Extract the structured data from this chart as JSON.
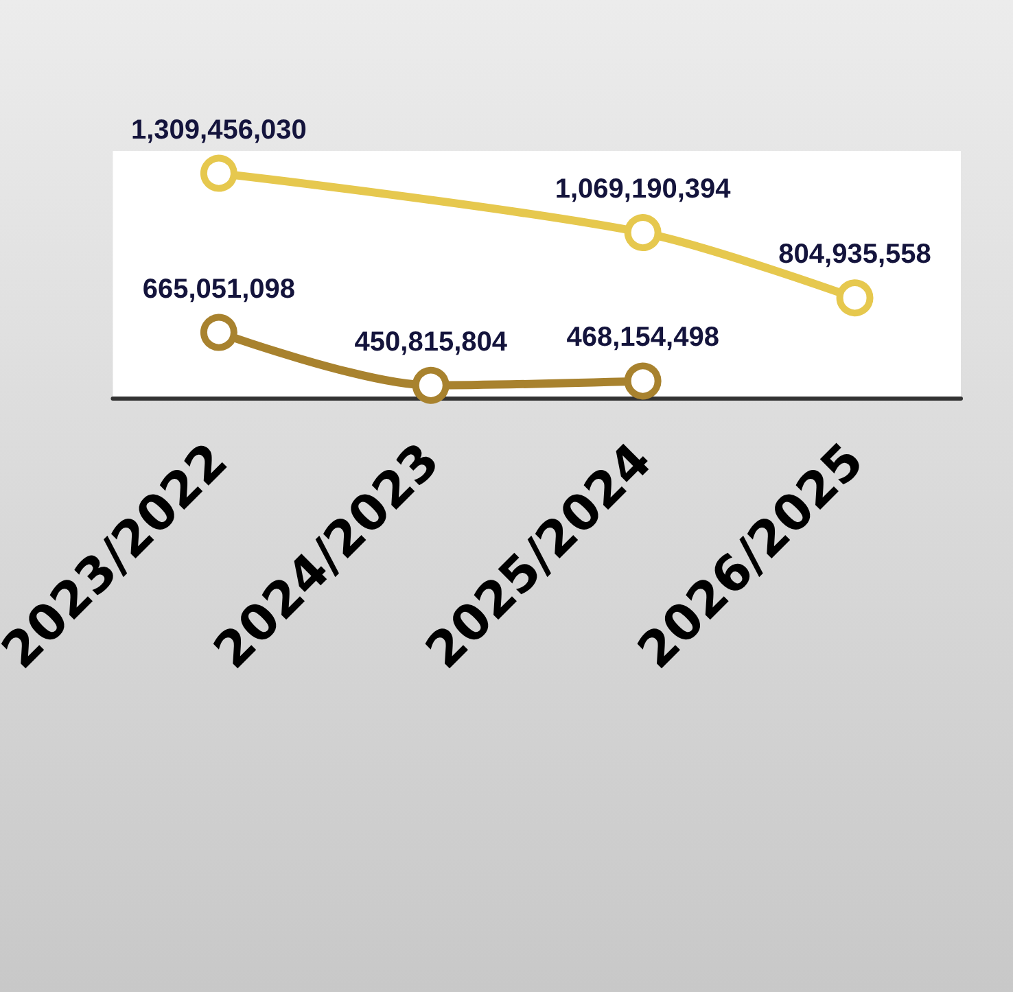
{
  "chart_data": {
    "type": "line",
    "categories": [
      "2023/2022",
      "2024/2023",
      "2025/2024",
      "2026/2025"
    ],
    "series": [
      {
        "color": "#e6c84e",
        "values": [
          1309456030,
          null,
          1069190394,
          804935558
        ],
        "value_labels": [
          "1,309,456,030",
          null,
          "1,069,190,394",
          "804,935,558"
        ]
      },
      {
        "color": "#a8822e",
        "values": [
          665051098,
          450815804,
          468154498,
          null
        ],
        "value_labels": [
          "665,051,098",
          "450,815,804",
          "468,154,498",
          null
        ]
      }
    ],
    "marker": "circle",
    "line_style": "solid"
  }
}
